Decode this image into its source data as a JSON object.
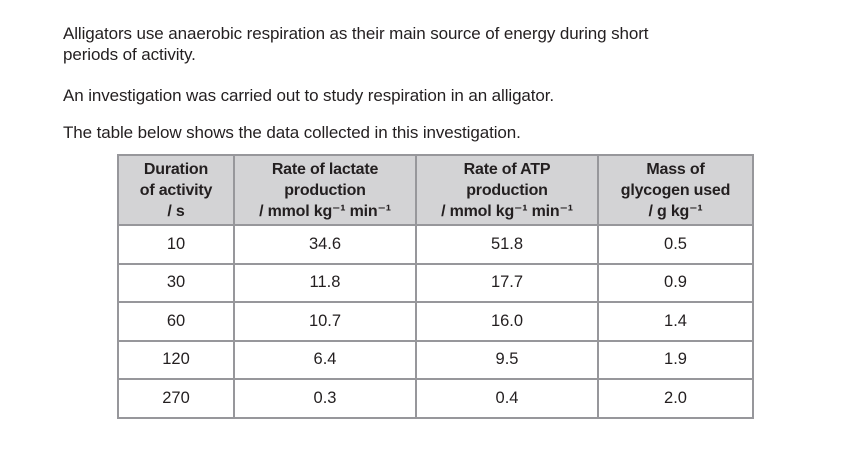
{
  "page": {
    "background": "#ffffff",
    "text_color": "#231f20"
  },
  "paragraphs": [
    {
      "lines": [
        "Alligators use anaerobic respiration as their main source of energy during short",
        "periods of activity."
      ]
    },
    {
      "lines": [
        "An investigation was carried out to study respiration in an alligator."
      ]
    },
    {
      "lines": [
        "The table below shows the data collected in this investigation."
      ]
    }
  ],
  "table": {
    "header_bg": "#d3d3d5",
    "border_color": "#97979b",
    "columns": [
      {
        "key": "duration",
        "lines": [
          "Duration",
          "of activity",
          "/ s"
        ]
      },
      {
        "key": "lactate-rate",
        "lines": [
          "Rate of lactate",
          "production",
          "/ mmol kg⁻¹ min⁻¹"
        ]
      },
      {
        "key": "atp-rate",
        "lines": [
          "Rate of ATP",
          "production",
          "/ mmol kg⁻¹ min⁻¹"
        ]
      },
      {
        "key": "glycogen-mass",
        "lines": [
          "Mass of",
          "glycogen used",
          "/ g kg⁻¹"
        ]
      }
    ],
    "rows": [
      [
        "10",
        "34.6",
        "51.8",
        "0.5"
      ],
      [
        "30",
        "11.8",
        "17.7",
        "0.9"
      ],
      [
        "60",
        "10.7",
        "16.0",
        "1.4"
      ],
      [
        "120",
        "6.4",
        "9.5",
        "1.9"
      ],
      [
        "270",
        "0.3",
        "0.4",
        "2.0"
      ]
    ]
  }
}
